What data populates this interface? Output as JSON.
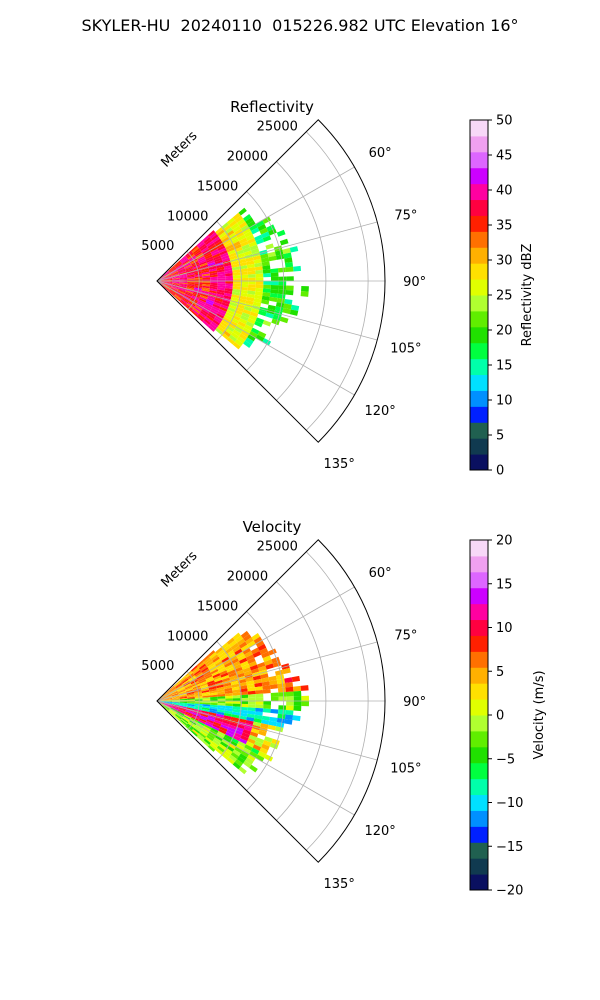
{
  "title": "SKYLER-HU  20240110  015226.982 UTC Elevation 16°",
  "chart_data": [
    {
      "type": "heatmap",
      "projection": "polar-sector",
      "title": "Reflectivity",
      "range_axis_label": "Meters",
      "range_ticks": [
        5000,
        10000,
        15000,
        20000,
        25000
      ],
      "range_tick_labels": [
        "5000",
        "10000",
        "15000",
        "20000",
        "25000"
      ],
      "range_max_m": 27000,
      "azimuth_range_deg": [
        45,
        135
      ],
      "azimuth_ticks": [
        60,
        75,
        90,
        105,
        120,
        135
      ],
      "azimuth_tick_labels": [
        "60°",
        "75°",
        "90°",
        "105°",
        "120°",
        "135°"
      ],
      "grid": true,
      "colorbar": {
        "label": "Reflectivity dBZ",
        "min": 0,
        "max": 50,
        "ticks": [
          0,
          5,
          10,
          15,
          20,
          25,
          30,
          35,
          40,
          45,
          50
        ],
        "tick_labels": [
          "0",
          "5",
          "10",
          "15",
          "20",
          "25",
          "30",
          "35",
          "40",
          "45",
          "50"
        ],
        "colors": [
          "#0a1060",
          "#103a50",
          "#206050",
          "#0020ff",
          "#0090ff",
          "#00e0ff",
          "#00ffaa",
          "#00ff40",
          "#20e000",
          "#60ee00",
          "#b0ff30",
          "#e0ff00",
          "#ffe000",
          "#ffb000",
          "#ff7000",
          "#ff2000",
          "#ff0040",
          "#ff00a0",
          "#cc00ff",
          "#dd66ff",
          "#f0a0f0",
          "#f8d8f8"
        ]
      }
    },
    {
      "type": "heatmap",
      "projection": "polar-sector",
      "title": "Velocity",
      "range_axis_label": "Meters",
      "range_ticks": [
        5000,
        10000,
        15000,
        20000,
        25000
      ],
      "range_tick_labels": [
        "5000",
        "10000",
        "15000",
        "20000",
        "25000"
      ],
      "range_max_m": 27000,
      "azimuth_range_deg": [
        45,
        135
      ],
      "azimuth_ticks": [
        60,
        75,
        90,
        105,
        120,
        135
      ],
      "azimuth_tick_labels": [
        "60°",
        "75°",
        "90°",
        "105°",
        "120°",
        "135°"
      ],
      "grid": true,
      "colorbar": {
        "label": "Velocity (m/s)",
        "min": -20,
        "max": 20,
        "ticks": [
          -20,
          -15,
          -10,
          -5,
          0,
          5,
          10,
          15,
          20
        ],
        "tick_labels": [
          "−20",
          "−15",
          "−10",
          "−5",
          "0",
          "5",
          "10",
          "15",
          "20"
        ],
        "colors": [
          "#0a1060",
          "#103a50",
          "#206050",
          "#0020ff",
          "#0090ff",
          "#00e0ff",
          "#00ffaa",
          "#00ff40",
          "#20e000",
          "#60ee00",
          "#b0ff30",
          "#e0ff00",
          "#ffe000",
          "#ffb000",
          "#ff7000",
          "#ff2000",
          "#ff0040",
          "#ff00a0",
          "#cc00ff",
          "#dd66ff",
          "#f0a0f0",
          "#f8d8f8"
        ]
      }
    }
  ]
}
